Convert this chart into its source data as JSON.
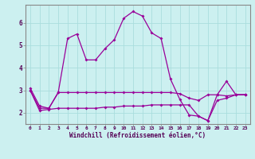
{
  "xlabel": "Windchill (Refroidissement éolien,°C)",
  "x": [
    0,
    1,
    2,
    3,
    4,
    5,
    6,
    7,
    8,
    9,
    10,
    11,
    12,
    13,
    14,
    15,
    16,
    17,
    18,
    19,
    20,
    21,
    22,
    23
  ],
  "line1": [
    3.1,
    2.3,
    2.2,
    2.9,
    5.3,
    5.5,
    4.35,
    4.35,
    4.85,
    5.25,
    6.2,
    6.5,
    6.3,
    5.55,
    5.3,
    3.5,
    2.6,
    1.9,
    1.85,
    1.65,
    2.8,
    3.4,
    2.8,
    2.8
  ],
  "line2": [
    3.0,
    2.2,
    2.2,
    2.9,
    2.9,
    2.9,
    2.9,
    2.9,
    2.9,
    2.9,
    2.9,
    2.9,
    2.9,
    2.9,
    2.9,
    2.9,
    2.85,
    2.65,
    2.55,
    2.8,
    2.8,
    2.75,
    2.8,
    2.8
  ],
  "line3": [
    3.0,
    2.1,
    2.15,
    2.2,
    2.2,
    2.2,
    2.2,
    2.2,
    2.25,
    2.25,
    2.3,
    2.3,
    2.3,
    2.35,
    2.35,
    2.35,
    2.35,
    2.35,
    1.85,
    1.65,
    2.55,
    2.65,
    2.8,
    2.8
  ],
  "line_color": "#990099",
  "bg_color": "#ccf0f0",
  "grid_color": "#aadddd",
  "ylim": [
    1.5,
    6.8
  ],
  "xlim": [
    -0.5,
    23.5
  ],
  "yticks": [
    2,
    3,
    4,
    5,
    6
  ],
  "xticks": [
    0,
    1,
    2,
    3,
    4,
    5,
    6,
    7,
    8,
    9,
    10,
    11,
    12,
    13,
    14,
    15,
    16,
    17,
    18,
    19,
    20,
    21,
    22,
    23
  ]
}
